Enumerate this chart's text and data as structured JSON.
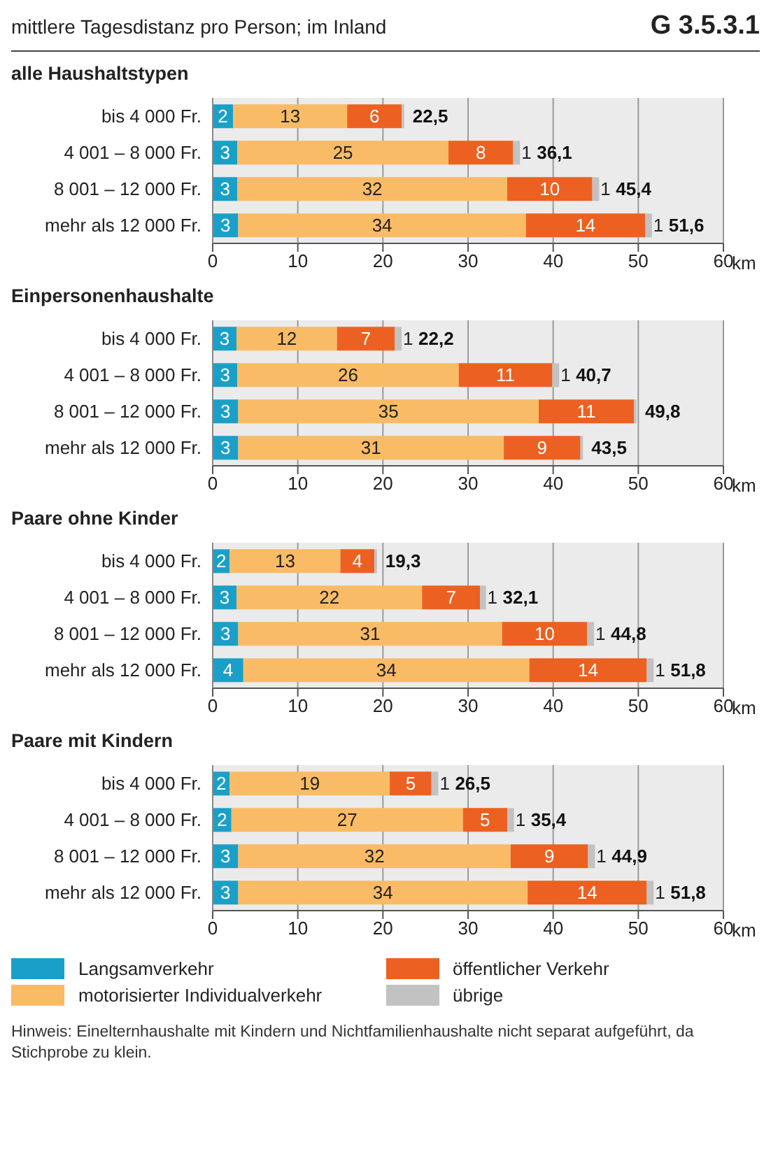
{
  "chart_data": [
    {
      "type": "bar",
      "orientation": "horizontal",
      "stacked": true,
      "title": "alle Haushaltstypen",
      "annotations": [
        "mittlere Tagesdistanz pro Person; im Inland",
        "G 3.5.3.1"
      ],
      "categories": [
        "bis 4 000 Fr.",
        "4 001 – 8 000 Fr.",
        "8 001 – 12 000 Fr.",
        "mehr als 12 000 Fr."
      ],
      "series": [
        {
          "color": "#1aa0c8",
          "values": [
            2.4,
            2.9,
            2.9,
            3.0
          ],
          "value_labels": [
            "2",
            "3",
            "3",
            "3"
          ]
        },
        {
          "color": "#f9bb66",
          "values": [
            13.4,
            24.8,
            31.7,
            33.8
          ],
          "value_labels": [
            "13",
            "25",
            "32",
            "34"
          ]
        },
        {
          "color": "#ec6121",
          "values": [
            6.4,
            7.6,
            10.0,
            14.0
          ],
          "value_labels": [
            "6",
            "8",
            "10",
            "14"
          ]
        },
        {
          "color": "#c2c2c2",
          "values": [
            0.3,
            0.8,
            0.8,
            0.8
          ],
          "value_labels": [
            null,
            "1",
            "1",
            "1"
          ]
        }
      ],
      "totals": [
        "22,5",
        "36,1",
        "45,4",
        "51,6"
      ],
      "xlabel": "km",
      "xlim": [
        0,
        60
      ],
      "xticks": [
        0,
        10,
        20,
        30,
        40,
        50,
        60
      ],
      "grid": "x"
    },
    {
      "type": "bar",
      "orientation": "horizontal",
      "stacked": true,
      "title": "Einpersonenhaushalte",
      "categories": [
        "bis 4 000 Fr.",
        "4 001 – 8 000 Fr.",
        "8 001 – 12 000 Fr.",
        "mehr als 12 000 Fr."
      ],
      "series": [
        {
          "color": "#1aa0c8",
          "values": [
            2.8,
            2.9,
            3.0,
            3.0
          ],
          "value_labels": [
            "3",
            "3",
            "3",
            "3"
          ]
        },
        {
          "color": "#f9bb66",
          "values": [
            11.8,
            26.0,
            35.3,
            31.2
          ],
          "value_labels": [
            "12",
            "26",
            "35",
            "31"
          ]
        },
        {
          "color": "#ec6121",
          "values": [
            6.8,
            11.0,
            11.2,
            9.0
          ],
          "value_labels": [
            "7",
            "11",
            "11",
            "9"
          ]
        },
        {
          "color": "#c2c2c2",
          "values": [
            0.8,
            0.8,
            0.3,
            0.3
          ],
          "value_labels": [
            "1",
            "1",
            null,
            null
          ]
        }
      ],
      "totals": [
        "22,2",
        "40,7",
        "49,8",
        "43,5"
      ],
      "xlabel": "km",
      "xlim": [
        0,
        60
      ],
      "xticks": [
        0,
        10,
        20,
        30,
        40,
        50,
        60
      ],
      "grid": "x"
    },
    {
      "type": "bar",
      "orientation": "horizontal",
      "stacked": true,
      "title": "Paare ohne Kinder",
      "categories": [
        "bis 4 000 Fr.",
        "4 001 – 8 000 Fr.",
        "8 001 – 12 000 Fr.",
        "mehr als 12 000 Fr."
      ],
      "series": [
        {
          "color": "#1aa0c8",
          "values": [
            2.0,
            2.8,
            3.0,
            3.6
          ],
          "value_labels": [
            "2",
            "3",
            "3",
            "4"
          ]
        },
        {
          "color": "#f9bb66",
          "values": [
            13.0,
            21.8,
            31.0,
            33.6
          ],
          "value_labels": [
            "13",
            "22",
            "31",
            "34"
          ]
        },
        {
          "color": "#ec6121",
          "values": [
            4.0,
            6.8,
            10.0,
            13.8
          ],
          "value_labels": [
            "4",
            "7",
            "10",
            "14"
          ]
        },
        {
          "color": "#c2c2c2",
          "values": [
            0.3,
            0.7,
            0.8,
            0.8
          ],
          "value_labels": [
            null,
            "1",
            "1",
            "1"
          ]
        }
      ],
      "totals": [
        "19,3",
        "32,1",
        "44,8",
        "51,8"
      ],
      "xlabel": "km",
      "xlim": [
        0,
        60
      ],
      "xticks": [
        0,
        10,
        20,
        30,
        40,
        50,
        60
      ],
      "grid": "x"
    },
    {
      "type": "bar",
      "orientation": "horizontal",
      "stacked": true,
      "title": "Paare mit Kindern",
      "annotations": [
        "Hinweis: Einelternhaushalte mit Kindern und Nichtfamilienhaushalte nicht separat aufgeführt, da Stichprobe zu klein."
      ],
      "categories": [
        "bis 4 000 Fr.",
        "4 001 – 8 000 Fr.",
        "8 001 – 12 000 Fr.",
        "mehr als 12 000 Fr."
      ],
      "series": [
        {
          "name": "Langsamverkehr",
          "color": "#1aa0c8",
          "values": [
            2.0,
            2.2,
            3.0,
            3.0
          ],
          "value_labels": [
            "2",
            "2",
            "3",
            "3"
          ]
        },
        {
          "name": "motorisierter Individualverkehr",
          "color": "#f9bb66",
          "values": [
            18.8,
            27.2,
            32.0,
            34.0
          ],
          "value_labels": [
            "19",
            "27",
            "32",
            "34"
          ]
        },
        {
          "name": "öffentlicher Verkehr",
          "color": "#ec6121",
          "values": [
            4.9,
            5.2,
            9.1,
            14.0
          ],
          "value_labels": [
            "5",
            "5",
            "9",
            "14"
          ]
        },
        {
          "name": "übrige",
          "color": "#c2c2c2",
          "values": [
            0.8,
            0.8,
            0.8,
            0.8
          ],
          "value_labels": [
            "1",
            "1",
            "1",
            "1"
          ]
        }
      ],
      "totals": [
        "26,5",
        "35,4",
        "44,9",
        "51,8"
      ],
      "xlabel": "km",
      "xlim": [
        0,
        60
      ],
      "xticks": [
        0,
        10,
        20,
        30,
        40,
        50,
        60
      ],
      "grid": "x",
      "legend": "bottom"
    }
  ]
}
